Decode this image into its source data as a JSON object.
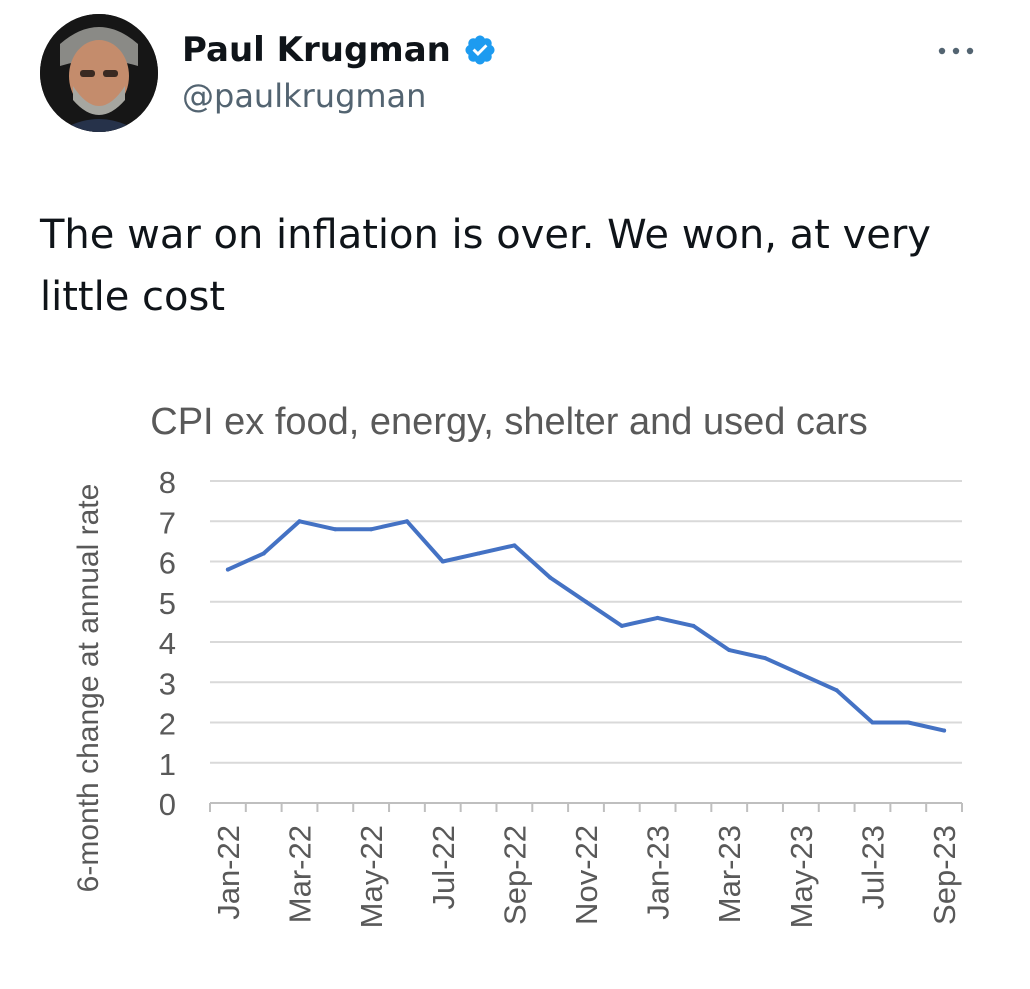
{
  "tweet": {
    "author_name": "Paul Krugman",
    "handle": "@paulkrugman",
    "verified_icon": "verified-badge-icon",
    "more_icon": "more-options-icon",
    "text": "The war on inflation is over. We won, at very little cost"
  },
  "chart_data": {
    "type": "line",
    "title": "CPI ex food, energy, shelter and used cars",
    "xlabel": "",
    "ylabel": "6-month change at annual rate",
    "ylim": [
      0,
      8
    ],
    "yticks": [
      "0",
      "1",
      "2",
      "3",
      "4",
      "5",
      "6",
      "7",
      "8"
    ],
    "grid": true,
    "legend": "none",
    "line_color": "#4472c4",
    "x": [
      "Jan-22",
      "Feb-22",
      "Mar-22",
      "Apr-22",
      "May-22",
      "Jun-22",
      "Jul-22",
      "Aug-22",
      "Sep-22",
      "Oct-22",
      "Nov-22",
      "Dec-22",
      "Jan-23",
      "Feb-23",
      "Mar-23",
      "Apr-23",
      "May-23",
      "Jun-23",
      "Jul-23",
      "Aug-23",
      "Sep-23"
    ],
    "xtick_labels": [
      "Jan-22",
      "Mar-22",
      "May-22",
      "Jul-22",
      "Sep-22",
      "Nov-22",
      "Jan-23",
      "Mar-23",
      "May-23",
      "Jul-23",
      "Sep-23"
    ],
    "series": [
      {
        "values": [
          5.8,
          6.2,
          7.0,
          6.8,
          6.8,
          7.0,
          6.0,
          6.2,
          6.4,
          5.6,
          5.0,
          4.4,
          4.6,
          4.4,
          3.8,
          3.6,
          3.2,
          2.8,
          2.0,
          2.0,
          1.8
        ]
      }
    ]
  }
}
